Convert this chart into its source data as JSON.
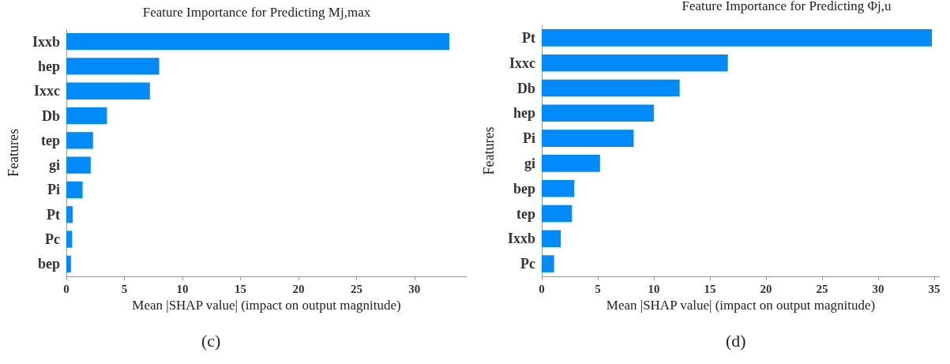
{
  "chart_data": [
    {
      "type": "bar",
      "orientation": "horizontal",
      "title": "Feature Importance for Predicting Mj,max",
      "xlabel": "Mean |SHAP value| (impact on output magnitude)",
      "ylabel": "Features",
      "categories": [
        "Ixxb",
        "hep",
        "Ixxc",
        "Db",
        "tep",
        "gi",
        "Pi",
        "Pt",
        "Pc",
        "bep"
      ],
      "values": [
        33.0,
        8.0,
        7.2,
        3.5,
        2.3,
        2.1,
        1.4,
        0.55,
        0.5,
        0.4
      ],
      "color": "#008bfb",
      "xlim": [
        0,
        34.5
      ],
      "xticks": [
        0,
        5,
        10,
        15,
        20,
        25,
        30
      ],
      "annotations": [
        "(c)"
      ]
    },
    {
      "type": "bar",
      "orientation": "horizontal",
      "title": "Feature Importance for Predicting Φj,u",
      "xlabel": "Mean |SHAP value| (impact on output magnitude)",
      "ylabel": "Features",
      "categories": [
        "Pt",
        "Ixxc",
        "Db",
        "hep",
        "Pi",
        "gi",
        "bep",
        "tep",
        "Ixxb",
        "Pc"
      ],
      "values": [
        34.8,
        16.6,
        12.3,
        10.0,
        8.2,
        5.2,
        2.9,
        2.7,
        1.7,
        1.1
      ],
      "color": "#008bfb",
      "xlim": [
        0,
        35.5
      ],
      "xticks": [
        0,
        5,
        10,
        15,
        20,
        25,
        30,
        35
      ],
      "annotations": [
        "(d)"
      ]
    }
  ]
}
